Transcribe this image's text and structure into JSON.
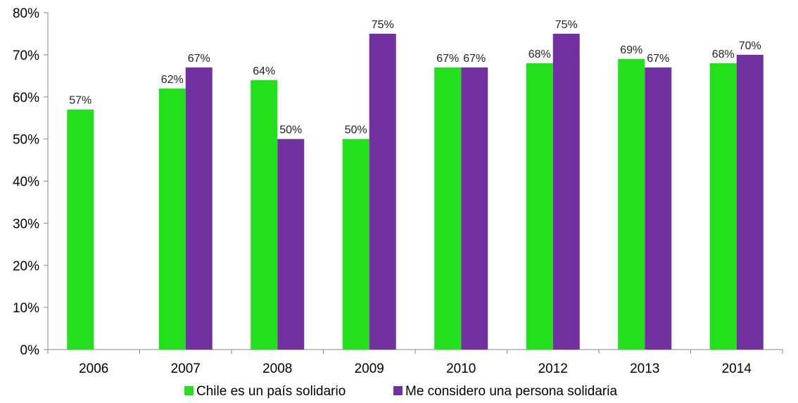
{
  "chart_data": {
    "type": "bar",
    "title": "",
    "xlabel": "",
    "ylabel": "",
    "categories": [
      "2006",
      "2007",
      "2008",
      "2009",
      "2010",
      "2012",
      "2013",
      "2014"
    ],
    "series": [
      {
        "name": "Chile es un país solidario",
        "color": "#22E01C",
        "values": [
          57,
          62,
          64,
          50,
          67,
          68,
          69,
          68
        ],
        "labels": [
          "57%",
          "62%",
          "64%",
          "50%",
          "67%",
          "68%",
          "69%",
          "68%"
        ]
      },
      {
        "name": "Me considero una persona solidaria",
        "color": "#7030A0",
        "values": [
          null,
          67,
          50,
          75,
          67,
          75,
          67,
          70
        ],
        "labels": [
          null,
          "67%",
          "50%",
          "75%",
          "67%",
          "75%",
          "67%",
          "70%"
        ]
      }
    ],
    "ylim": [
      0,
      80
    ],
    "yticks": [
      0,
      10,
      20,
      30,
      40,
      50,
      60,
      70,
      80
    ],
    "ytick_labels": [
      "0%",
      "10%",
      "20%",
      "30%",
      "40%",
      "50%",
      "60%",
      "70%",
      "80%"
    ],
    "grid": false,
    "legend_position": "bottom"
  }
}
